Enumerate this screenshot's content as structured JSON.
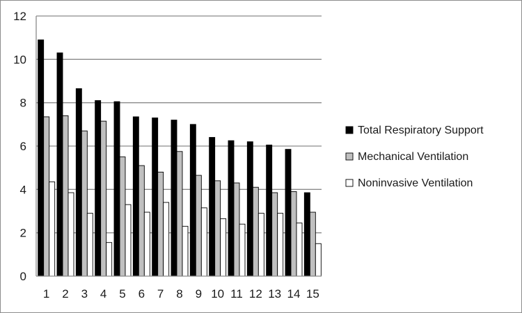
{
  "chart_data": {
    "type": "bar",
    "title": "",
    "xlabel": "",
    "ylabel": "",
    "ylim": [
      0,
      12
    ],
    "y_ticks": [
      0,
      2,
      4,
      6,
      8,
      10,
      12
    ],
    "grid": "horizontal",
    "legend_position": "right",
    "categories": [
      "1",
      "2",
      "3",
      "4",
      "5",
      "6",
      "7",
      "8",
      "9",
      "10",
      "11",
      "12",
      "13",
      "14",
      "15"
    ],
    "series": [
      {
        "name": "Total Respiratory Support",
        "color": "#000000",
        "values": [
          10.9,
          10.3,
          8.65,
          8.1,
          8.05,
          7.35,
          7.3,
          7.2,
          7.0,
          6.4,
          6.25,
          6.2,
          6.05,
          5.85,
          3.85
        ]
      },
      {
        "name": "Mechanical Ventilation",
        "color": "#c0c0c0",
        "values": [
          7.35,
          7.4,
          6.7,
          7.15,
          5.5,
          5.1,
          4.8,
          5.75,
          4.65,
          4.4,
          4.3,
          4.1,
          3.85,
          3.9,
          2.95
        ]
      },
      {
        "name": "Noninvasive Ventilation",
        "color": "#ffffff",
        "values": [
          4.35,
          3.85,
          2.9,
          1.55,
          3.3,
          2.95,
          3.4,
          2.3,
          3.15,
          2.65,
          2.4,
          2.9,
          2.9,
          2.45,
          1.5
        ]
      }
    ]
  }
}
